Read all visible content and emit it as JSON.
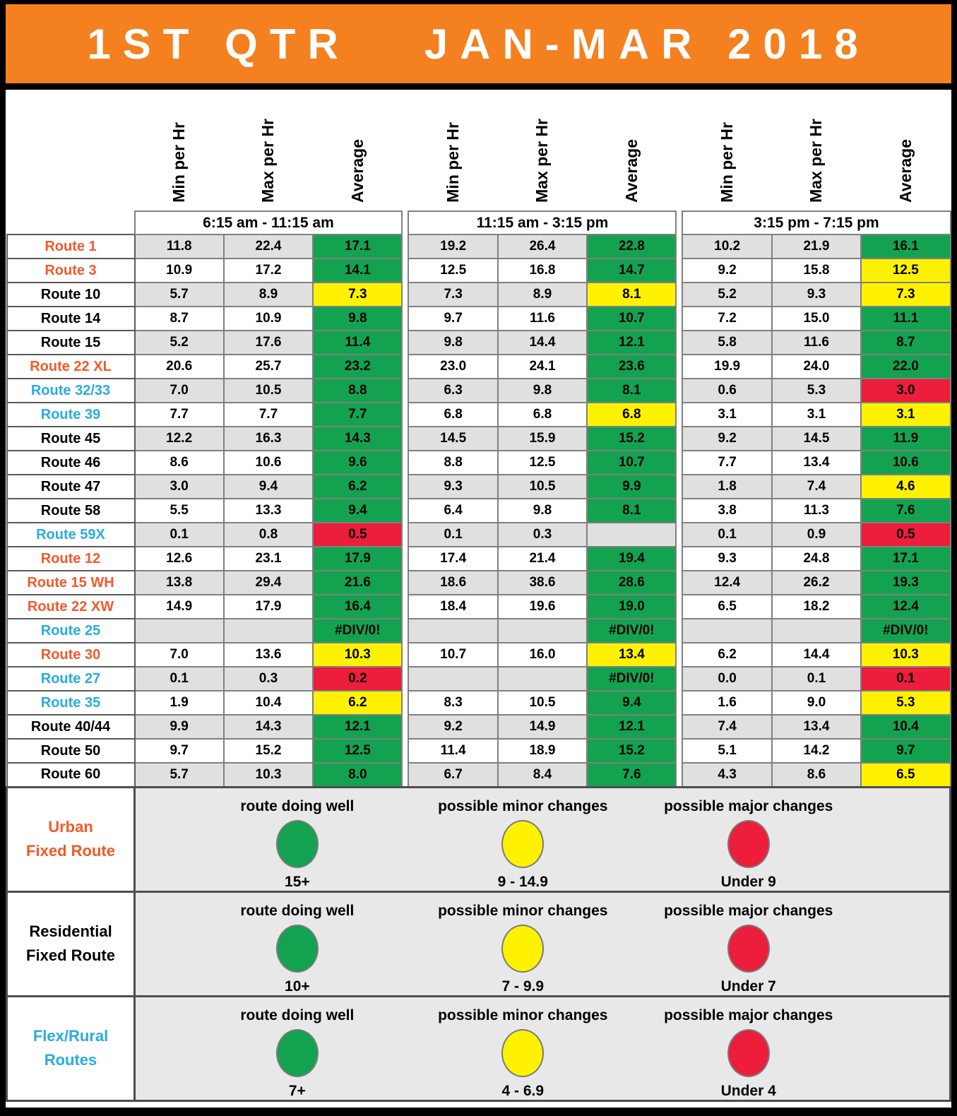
{
  "header": {
    "title_left": "1ST QTR",
    "title_right": "JAN-MAR 2018"
  },
  "columns": {
    "metrics": [
      "Min per Hr",
      "Max per Hr",
      "Average"
    ],
    "periods": [
      "6:15 am - 11:15 am",
      "11:15 am - 3:15 pm",
      "3:15 pm - 7:15 pm"
    ]
  },
  "colors": {
    "header_orange": "#F4801F",
    "route_orange": "#F15A29",
    "route_blue": "#29ABE2",
    "green": "#13A350",
    "yellow": "#FFF200",
    "red": "#EC1E3B",
    "row_gray": "#E0E0E0",
    "legend_gray": "#E8E8E8"
  },
  "routes": [
    {
      "name": "Route 1",
      "color": "orange",
      "values": [
        "11.8",
        "22.4",
        "17.1",
        "19.2",
        "26.4",
        "22.8",
        "10.2",
        "21.9",
        "16.1"
      ],
      "status": [
        "plain",
        "plain",
        "green",
        "plain",
        "plain",
        "green",
        "plain",
        "plain",
        "green"
      ]
    },
    {
      "name": "Route 3",
      "color": "orange",
      "values": [
        "10.9",
        "17.2",
        "14.1",
        "12.5",
        "16.8",
        "14.7",
        "9.2",
        "15.8",
        "12.5"
      ],
      "status": [
        "plain",
        "plain",
        "green",
        "plain",
        "plain",
        "green",
        "plain",
        "plain",
        "yellow"
      ]
    },
    {
      "name": "Route 10",
      "color": "black",
      "values": [
        "5.7",
        "8.9",
        "7.3",
        "7.3",
        "8.9",
        "8.1",
        "5.2",
        "9.3",
        "7.3"
      ],
      "status": [
        "plain",
        "plain",
        "yellow",
        "plain",
        "plain",
        "yellow",
        "plain",
        "plain",
        "yellow"
      ]
    },
    {
      "name": "Route 14",
      "color": "black",
      "values": [
        "8.7",
        "10.9",
        "9.8",
        "9.7",
        "11.6",
        "10.7",
        "7.2",
        "15.0",
        "11.1"
      ],
      "status": [
        "plain",
        "plain",
        "green",
        "plain",
        "plain",
        "green",
        "plain",
        "plain",
        "green"
      ]
    },
    {
      "name": "Route 15",
      "color": "black",
      "values": [
        "5.2",
        "17.6",
        "11.4",
        "9.8",
        "14.4",
        "12.1",
        "5.8",
        "11.6",
        "8.7"
      ],
      "status": [
        "plain",
        "plain",
        "green",
        "plain",
        "plain",
        "green",
        "plain",
        "plain",
        "green"
      ]
    },
    {
      "name": "Route 22 XL",
      "color": "orange",
      "values": [
        "20.6",
        "25.7",
        "23.2",
        "23.0",
        "24.1",
        "23.6",
        "19.9",
        "24.0",
        "22.0"
      ],
      "status": [
        "plain",
        "plain",
        "green",
        "plain",
        "plain",
        "green",
        "plain",
        "plain",
        "green"
      ]
    },
    {
      "name": "Route 32/33",
      "color": "blue",
      "values": [
        "7.0",
        "10.5",
        "8.8",
        "6.3",
        "9.8",
        "8.1",
        "0.6",
        "5.3",
        "3.0"
      ],
      "status": [
        "plain",
        "plain",
        "green",
        "plain",
        "plain",
        "green",
        "plain",
        "plain",
        "red"
      ]
    },
    {
      "name": "Route 39",
      "color": "blue",
      "values": [
        "7.7",
        "7.7",
        "7.7",
        "6.8",
        "6.8",
        "6.8",
        "3.1",
        "3.1",
        "3.1"
      ],
      "status": [
        "plain",
        "plain",
        "green",
        "plain",
        "plain",
        "yellow",
        "plain",
        "plain",
        "yellow"
      ]
    },
    {
      "name": "Route 45",
      "color": "black",
      "values": [
        "12.2",
        "16.3",
        "14.3",
        "14.5",
        "15.9",
        "15.2",
        "9.2",
        "14.5",
        "11.9"
      ],
      "status": [
        "plain",
        "plain",
        "green",
        "plain",
        "plain",
        "green",
        "plain",
        "plain",
        "green"
      ]
    },
    {
      "name": "Route 46",
      "color": "black",
      "values": [
        "8.6",
        "10.6",
        "9.6",
        "8.8",
        "12.5",
        "10.7",
        "7.7",
        "13.4",
        "10.6"
      ],
      "status": [
        "plain",
        "plain",
        "green",
        "plain",
        "plain",
        "green",
        "plain",
        "plain",
        "green"
      ]
    },
    {
      "name": "Route 47",
      "color": "black",
      "values": [
        "3.0",
        "9.4",
        "6.2",
        "9.3",
        "10.5",
        "9.9",
        "1.8",
        "7.4",
        "4.6"
      ],
      "status": [
        "plain",
        "plain",
        "green",
        "plain",
        "plain",
        "green",
        "plain",
        "plain",
        "yellow"
      ]
    },
    {
      "name": "Route 58",
      "color": "black",
      "values": [
        "5.5",
        "13.3",
        "9.4",
        "6.4",
        "9.8",
        "8.1",
        "3.8",
        "11.3",
        "7.6"
      ],
      "status": [
        "plain",
        "plain",
        "green",
        "plain",
        "plain",
        "green",
        "plain",
        "plain",
        "green"
      ]
    },
    {
      "name": "Route 59X",
      "color": "blue",
      "values": [
        "0.1",
        "0.8",
        "0.5",
        "0.1",
        "0.3",
        "",
        "0.1",
        "0.9",
        "0.5"
      ],
      "status": [
        "plain",
        "plain",
        "red",
        "plain",
        "plain",
        "plain",
        "plain",
        "plain",
        "red"
      ]
    },
    {
      "name": "Route 12",
      "color": "orange",
      "values": [
        "12.6",
        "23.1",
        "17.9",
        "17.4",
        "21.4",
        "19.4",
        "9.3",
        "24.8",
        "17.1"
      ],
      "status": [
        "plain",
        "plain",
        "green",
        "plain",
        "plain",
        "green",
        "plain",
        "plain",
        "green"
      ]
    },
    {
      "name": "Route 15 WH",
      "color": "orange",
      "values": [
        "13.8",
        "29.4",
        "21.6",
        "18.6",
        "38.6",
        "28.6",
        "12.4",
        "26.2",
        "19.3"
      ],
      "status": [
        "plain",
        "plain",
        "green",
        "plain",
        "plain",
        "green",
        "plain",
        "plain",
        "green"
      ]
    },
    {
      "name": "Route 22 XW",
      "color": "orange",
      "values": [
        "14.9",
        "17.9",
        "16.4",
        "18.4",
        "19.6",
        "19.0",
        "6.5",
        "18.2",
        "12.4"
      ],
      "status": [
        "plain",
        "plain",
        "green",
        "plain",
        "plain",
        "green",
        "plain",
        "plain",
        "green"
      ]
    },
    {
      "name": "Route 25",
      "color": "blue",
      "values": [
        "",
        "",
        "#DIV/0!",
        "",
        "",
        "#DIV/0!",
        "",
        "",
        "#DIV/0!"
      ],
      "status": [
        "plain",
        "plain",
        "green",
        "plain",
        "plain",
        "green",
        "plain",
        "plain",
        "green"
      ]
    },
    {
      "name": "Route 30",
      "color": "orange",
      "values": [
        "7.0",
        "13.6",
        "10.3",
        "10.7",
        "16.0",
        "13.4",
        "6.2",
        "14.4",
        "10.3"
      ],
      "status": [
        "plain",
        "plain",
        "yellow",
        "plain",
        "plain",
        "yellow",
        "plain",
        "plain",
        "yellow"
      ]
    },
    {
      "name": "Route 27",
      "color": "blue",
      "values": [
        "0.1",
        "0.3",
        "0.2",
        "",
        "",
        "#DIV/0!",
        "0.0",
        "0.1",
        "0.1"
      ],
      "status": [
        "plain",
        "plain",
        "red",
        "plain",
        "plain",
        "green",
        "plain",
        "plain",
        "red"
      ]
    },
    {
      "name": "Route 35",
      "color": "blue",
      "values": [
        "1.9",
        "10.4",
        "6.2",
        "8.3",
        "10.5",
        "9.4",
        "1.6",
        "9.0",
        "5.3"
      ],
      "status": [
        "plain",
        "plain",
        "yellow",
        "plain",
        "plain",
        "green",
        "plain",
        "plain",
        "yellow"
      ]
    },
    {
      "name": "Route 40/44",
      "color": "black",
      "values": [
        "9.9",
        "14.3",
        "12.1",
        "9.2",
        "14.9",
        "12.1",
        "7.4",
        "13.4",
        "10.4"
      ],
      "status": [
        "plain",
        "plain",
        "green",
        "plain",
        "plain",
        "green",
        "plain",
        "plain",
        "green"
      ]
    },
    {
      "name": "Route 50",
      "color": "black",
      "values": [
        "9.7",
        "15.2",
        "12.5",
        "11.4",
        "18.9",
        "15.2",
        "5.1",
        "14.2",
        "9.7"
      ],
      "status": [
        "plain",
        "plain",
        "green",
        "plain",
        "plain",
        "green",
        "plain",
        "plain",
        "green"
      ]
    },
    {
      "name": "Route 60",
      "color": "black",
      "values": [
        "5.7",
        "10.3",
        "8.0",
        "6.7",
        "8.4",
        "7.6",
        "4.3",
        "8.6",
        "6.5"
      ],
      "status": [
        "plain",
        "plain",
        "green",
        "plain",
        "plain",
        "green",
        "plain",
        "plain",
        "yellow"
      ]
    }
  ],
  "legend": [
    {
      "label_lines": [
        "Urban",
        "Fixed Route"
      ],
      "color": "orange",
      "items": [
        {
          "title": "route doing well",
          "dot": "green",
          "range": "15+"
        },
        {
          "title": "possible minor changes",
          "dot": "yellow",
          "range": "9 - 14.9"
        },
        {
          "title": "possible major changes",
          "dot": "red",
          "range": "Under 9"
        }
      ]
    },
    {
      "label_lines": [
        "Residential",
        "Fixed Route"
      ],
      "color": "black",
      "items": [
        {
          "title": "route doing well",
          "dot": "green",
          "range": "10+"
        },
        {
          "title": "possible minor changes",
          "dot": "yellow",
          "range": "7 - 9.9"
        },
        {
          "title": "possible major changes",
          "dot": "red",
          "range": "Under 7"
        }
      ]
    },
    {
      "label_lines": [
        "Flex/Rural",
        "Routes"
      ],
      "color": "blue",
      "items": [
        {
          "title": "route doing well",
          "dot": "green",
          "range": "7+"
        },
        {
          "title": "possible minor changes",
          "dot": "yellow",
          "range": "4 - 6.9"
        },
        {
          "title": "possible major changes",
          "dot": "red",
          "range": "Under 4"
        }
      ]
    }
  ]
}
